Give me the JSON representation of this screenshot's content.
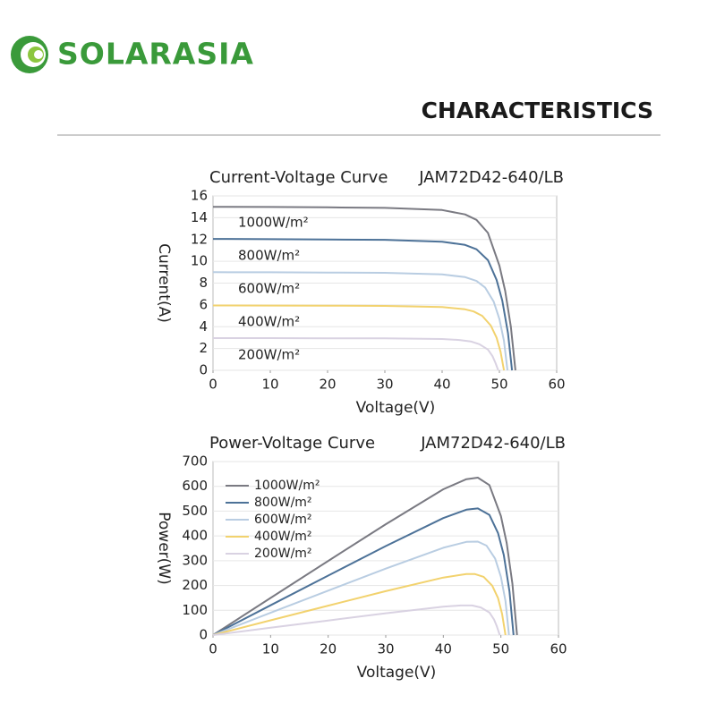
{
  "logo": "SOLARASIA",
  "heading": "CHARACTERISTICS",
  "chart_data": [
    {
      "type": "line",
      "title": "Current-Voltage Curve",
      "model": "JAM72D42-640/LB",
      "xlabel": "Voltage(V)",
      "ylabel": "Current(A)",
      "legend": "inline",
      "grid": true,
      "xlim": [
        0,
        60
      ],
      "xticks": [
        0,
        10,
        20,
        30,
        40,
        50,
        60
      ],
      "ylim": [
        0,
        16
      ],
      "yticks": [
        0,
        2,
        4,
        6,
        8,
        10,
        12,
        14,
        16
      ],
      "series": [
        {
          "name": "1000W/m²",
          "color": "#7a7a82",
          "x": [
            0,
            10,
            20,
            30,
            40,
            44,
            46,
            48,
            50,
            51,
            52,
            52.8
          ],
          "values": [
            15.0,
            14.98,
            14.95,
            14.9,
            14.7,
            14.3,
            13.8,
            12.6,
            9.6,
            7.3,
            4.0,
            0
          ]
        },
        {
          "name": "800W/m²",
          "color": "#4d7298",
          "x": [
            0,
            10,
            20,
            30,
            40,
            44,
            46,
            48,
            49.5,
            50.5,
            51.5,
            52.2
          ],
          "values": [
            12.05,
            12.03,
            12.0,
            11.97,
            11.8,
            11.5,
            11.1,
            10.1,
            8.3,
            6.4,
            3.4,
            0
          ]
        },
        {
          "name": "600W/m²",
          "color": "#b9cde2",
          "x": [
            0,
            10,
            20,
            30,
            40,
            44,
            46,
            47.5,
            49,
            50,
            50.8,
            51.4
          ],
          "values": [
            9.0,
            8.99,
            8.97,
            8.94,
            8.8,
            8.55,
            8.2,
            7.6,
            6.3,
            4.7,
            2.7,
            0
          ]
        },
        {
          "name": "400W/m²",
          "color": "#f2d26e",
          "x": [
            0,
            10,
            20,
            30,
            40,
            44,
            45.5,
            47,
            48.5,
            49.5,
            50.2,
            50.8
          ],
          "values": [
            5.95,
            5.94,
            5.93,
            5.91,
            5.8,
            5.6,
            5.4,
            5.0,
            4.1,
            3.0,
            1.7,
            0
          ]
        },
        {
          "name": "200W/m²",
          "color": "#d9d2e2",
          "x": [
            0,
            10,
            20,
            30,
            40,
            43,
            45,
            46.5,
            48,
            48.8,
            49.3,
            49.8
          ],
          "values": [
            2.95,
            2.95,
            2.94,
            2.93,
            2.87,
            2.78,
            2.65,
            2.4,
            1.9,
            1.3,
            0.7,
            0
          ]
        }
      ]
    },
    {
      "type": "line",
      "title": "Power-Voltage Curve",
      "model": "JAM72D42-640/LB",
      "xlabel": "Voltage(V)",
      "ylabel": "Power(W)",
      "legend": "upper left",
      "grid": true,
      "xlim": [
        0,
        60
      ],
      "xticks": [
        0,
        10,
        20,
        30,
        40,
        50,
        60
      ],
      "ylim": [
        0,
        700
      ],
      "yticks": [
        0,
        100,
        200,
        300,
        400,
        500,
        600,
        700
      ],
      "series": [
        {
          "name": "1000W/m²",
          "color": "#7a7a82",
          "x": [
            0,
            10,
            20,
            30,
            40,
            44,
            46,
            48,
            50,
            51,
            52,
            52.8
          ],
          "values": [
            0,
            149.8,
            299,
            447,
            588,
            629,
            635,
            605,
            480,
            372,
            208,
            0
          ]
        },
        {
          "name": "800W/m²",
          "color": "#4d7298",
          "x": [
            0,
            10,
            20,
            30,
            40,
            44,
            46,
            48,
            49.5,
            50.5,
            51.5,
            52.2
          ],
          "values": [
            0,
            120.3,
            240,
            359,
            472,
            506,
            511,
            485,
            411,
            323,
            175,
            0
          ]
        },
        {
          "name": "600W/m²",
          "color": "#b9cde2",
          "x": [
            0,
            10,
            20,
            30,
            40,
            44,
            46,
            47.5,
            49,
            50,
            50.8,
            51.4
          ],
          "values": [
            0,
            89.9,
            179.4,
            268.2,
            352,
            376,
            377,
            361,
            309,
            235,
            137,
            0
          ]
        },
        {
          "name": "400W/m²",
          "color": "#f2d26e",
          "x": [
            0,
            10,
            20,
            30,
            40,
            44,
            45.5,
            47,
            48.5,
            49.5,
            50.2,
            50.8
          ],
          "values": [
            0,
            59.4,
            118.6,
            177.3,
            232,
            246,
            246,
            235,
            199,
            149,
            85,
            0
          ]
        },
        {
          "name": "200W/m²",
          "color": "#d9d2e2",
          "x": [
            0,
            10,
            20,
            30,
            40,
            43,
            45,
            46.5,
            48,
            48.8,
            49.3,
            49.8
          ],
          "values": [
            0,
            29.5,
            58.8,
            87.9,
            114.8,
            119.5,
            119.3,
            111.6,
            91.2,
            63.4,
            34.5,
            0
          ]
        }
      ]
    }
  ]
}
